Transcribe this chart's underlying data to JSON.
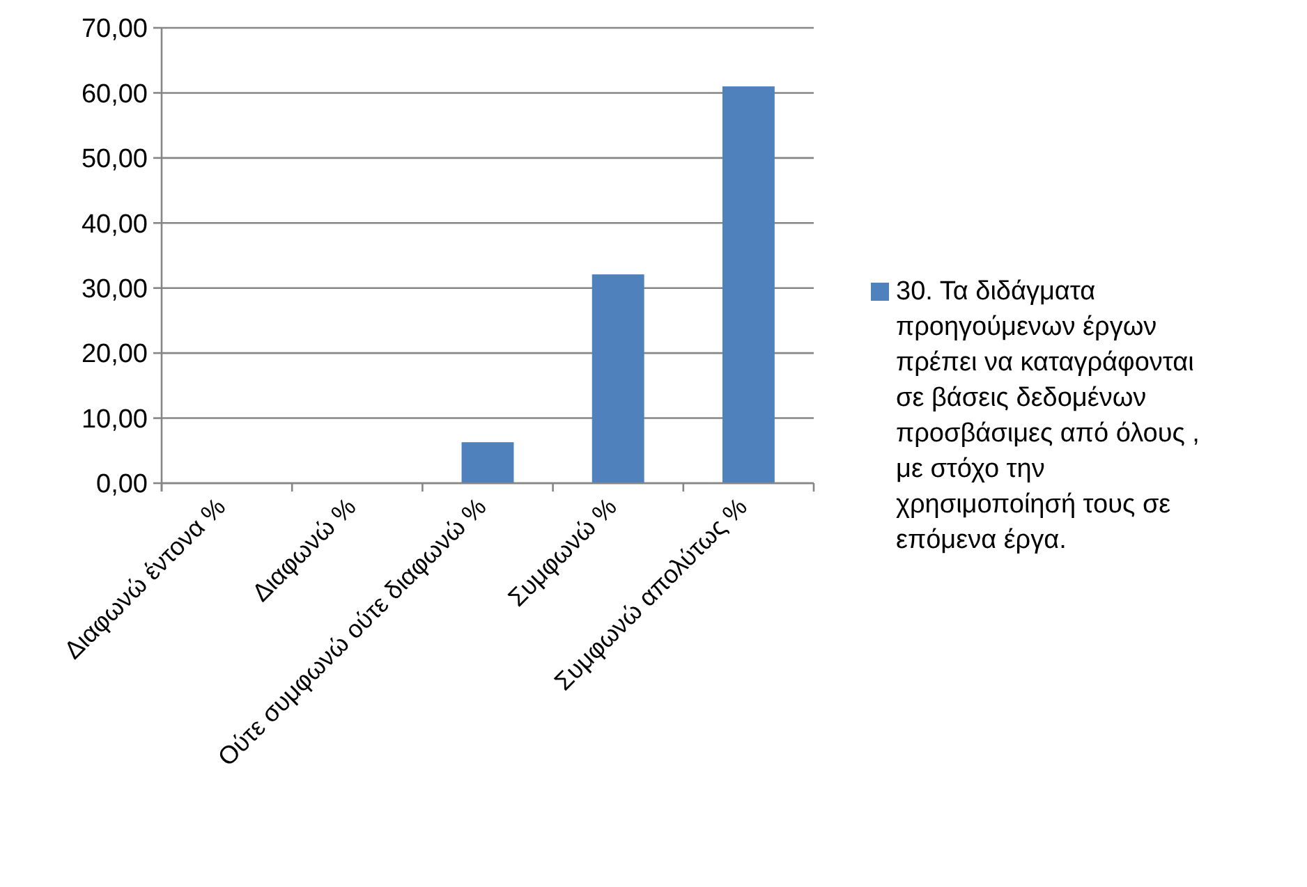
{
  "chart_data": {
    "type": "bar",
    "categories": [
      "Διαφωνώ έντονα %",
      "Διαφωνώ %",
      "Ούτε συμφωνώ ούτε διαφωνώ %",
      "Συμφωνώ %",
      "Συμφωνώ απολύτως %"
    ],
    "series": [
      {
        "name": "30. Τα διδάγματα προηγούμενων έργων πρέπει να καταγράφονται σε βάσεις δεδομένων προσβάσιμες από όλους , με στόχο την χρησιμοποίησή τους σε επόμενα έργα.",
        "color": "#4f81bd",
        "values": [
          0,
          0,
          6.3,
          32.1,
          61.0
        ]
      }
    ],
    "ylim": [
      0,
      70
    ],
    "yticks": [
      {
        "value": 0,
        "label": "0,00"
      },
      {
        "value": 10,
        "label": "10,00"
      },
      {
        "value": 20,
        "label": "20,00"
      },
      {
        "value": 30,
        "label": "30,00"
      },
      {
        "value": 40,
        "label": "40,00"
      },
      {
        "value": 50,
        "label": "50,00"
      },
      {
        "value": 60,
        "label": "60,00"
      },
      {
        "value": 70,
        "label": "70,00"
      }
    ],
    "grid": "y",
    "legend": "right"
  }
}
